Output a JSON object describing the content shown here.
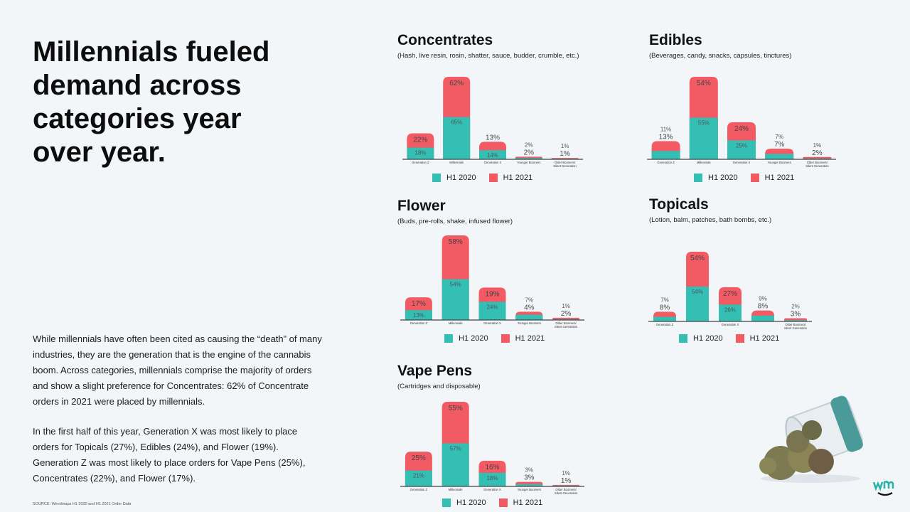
{
  "headline": "Millennials fueled demand across categories year over year.",
  "body": [
    "While millennials have often been cited as causing the “death” of many industries, they are the generation that is the engine of the cannabis boom. Across categories, millennials comprise the majority of orders and show a slight preference for Concentrates: 62% of Concentrate orders in 2021 were placed by millennials.",
    "In the first half of this year, Generation X was most likely to place orders for Topicals (27%), Edibles (24%), and Flower (19%). Generation Z was most likely to place orders for Vape Pens (25%), Concentrates (22%), and Flower (17%)."
  ],
  "source": "SOURCE: Weedmaps H1 2020 and H1 2021 Order Data",
  "logo": "wm",
  "colors": {
    "h1_2020": "#33bfb4",
    "h1_2021": "#f25a64",
    "background": "#f3f6f9"
  },
  "chart_data": [
    {
      "type": "bar",
      "stacked": true,
      "title": "Concentrates",
      "subtitle": "(Hash, live resin, rosin, shatter, sauce, budder, crumble, etc.)",
      "categories": [
        "Generation Z",
        "Millennials",
        "Generation X",
        "Younger Boomers",
        "Older Boomers/Silent Generation"
      ],
      "series": [
        {
          "name": "H1 2020",
          "values": [
            18,
            65,
            14,
            2,
            1
          ]
        },
        {
          "name": "H1 2021",
          "values": [
            22,
            62,
            13,
            2,
            1
          ]
        }
      ],
      "legend": "bottom"
    },
    {
      "type": "bar",
      "stacked": true,
      "title": "Edibles",
      "subtitle": "(Beverages, candy, snacks, capsules, tinctures)",
      "categories": [
        "Generation Z",
        "Millennials",
        "Generation X",
        "Younger Boomers",
        "Older Boomers/Silent Generation"
      ],
      "series": [
        {
          "name": "H1 2020",
          "values": [
            11,
            55,
            25,
            7,
            1
          ]
        },
        {
          "name": "H1 2021",
          "values": [
            13,
            54,
            24,
            7,
            2
          ]
        }
      ],
      "legend": "bottom"
    },
    {
      "type": "bar",
      "stacked": true,
      "title": "Flower",
      "subtitle": "(Buds, pre-rolls, shake, infused flower)",
      "categories": [
        "Generation Z",
        "Millennials",
        "Generation X",
        "Younger Boomers",
        "Older Boomers/Silent Generation"
      ],
      "series": [
        {
          "name": "H1 2020",
          "values": [
            13,
            54,
            24,
            7,
            1
          ]
        },
        {
          "name": "H1 2021",
          "values": [
            17,
            58,
            19,
            4,
            2
          ]
        }
      ],
      "legend": "bottom"
    },
    {
      "type": "bar",
      "stacked": true,
      "title": "Topicals",
      "subtitle": "(Lotion, balm, patches, bath bombs, etc.)",
      "categories": [
        "Generation Z",
        "",
        "Generation X",
        "",
        "Older Boomers/Silent Generation"
      ],
      "series": [
        {
          "name": "H1 2020",
          "values": [
            7,
            54,
            26,
            9,
            2
          ]
        },
        {
          "name": "H1 2021",
          "values": [
            8,
            54,
            27,
            8,
            3
          ]
        }
      ],
      "legend": "bottom"
    },
    {
      "type": "bar",
      "stacked": true,
      "title": "Vape Pens",
      "subtitle": "(Cartridges and disposable)",
      "categories": [
        "Generation Z",
        "Millennials",
        "Generation X",
        "Younger Boomers",
        "Older Boomers/Silent Generation"
      ],
      "series": [
        {
          "name": "H1 2020",
          "values": [
            21,
            57,
            18,
            3,
            1
          ]
        },
        {
          "name": "H1 2021",
          "values": [
            25,
            55,
            16,
            3,
            1
          ]
        }
      ],
      "legend": "bottom"
    }
  ]
}
